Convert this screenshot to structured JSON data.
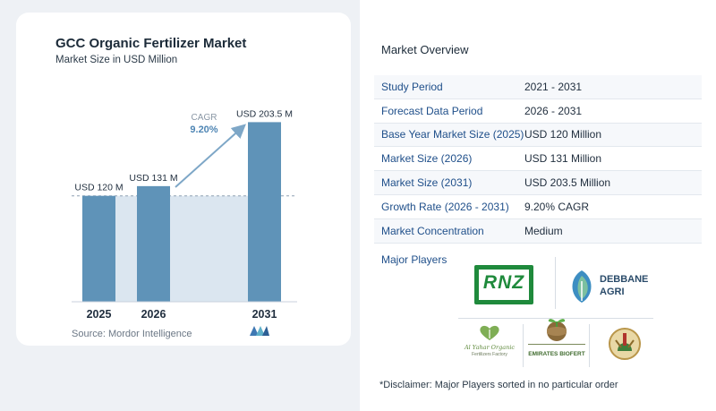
{
  "chart_data": {
    "type": "bar",
    "title": "GCC Organic Fertilizer Market",
    "subtitle": "Market Size in USD Million",
    "categories": [
      "2025",
      "2026",
      "2031"
    ],
    "values": [
      120,
      131,
      203.5
    ],
    "data_labels": [
      "USD 120 M",
      "USD 131 M",
      "USD 203.5 M"
    ],
    "cagr_label": "CAGR",
    "cagr_value": "9.20%",
    "ylim": [
      0,
      210
    ],
    "grid": false,
    "bar_color": "#5f93b8",
    "baseline_band_color": "#dbe6f0"
  },
  "source": "Source: Mordor Intelligence",
  "overview": {
    "title": "Market Overview",
    "rows": [
      {
        "key": "Study Period",
        "value": "2021 - 2031"
      },
      {
        "key": "Forecast Data Period",
        "value": "2026 - 2031"
      },
      {
        "key": "Base Year Market Size (2025)",
        "value": "USD 120 Million"
      },
      {
        "key": "Market Size (2026)",
        "value": "USD 131 Million"
      },
      {
        "key": "Market Size (2031)",
        "value": "USD 203.5 Million"
      },
      {
        "key": "Growth Rate (2026 - 2031)",
        "value": "9.20% CAGR"
      },
      {
        "key": "Market Concentration",
        "value": "Medium"
      }
    ]
  },
  "major_players": {
    "title": "Major Players",
    "logos": {
      "rnz": "RNZ",
      "debbane_line1": "DEBBANE",
      "debbane_line2": "AGRI",
      "alyahar_line1": "Al Yahar Organic",
      "alyahar_line2": "Fertilizers Factory",
      "emirates": "EMIRATES BIOFERT"
    }
  },
  "disclaimer": "*Disclaimer: Major Players sorted in no particular order"
}
